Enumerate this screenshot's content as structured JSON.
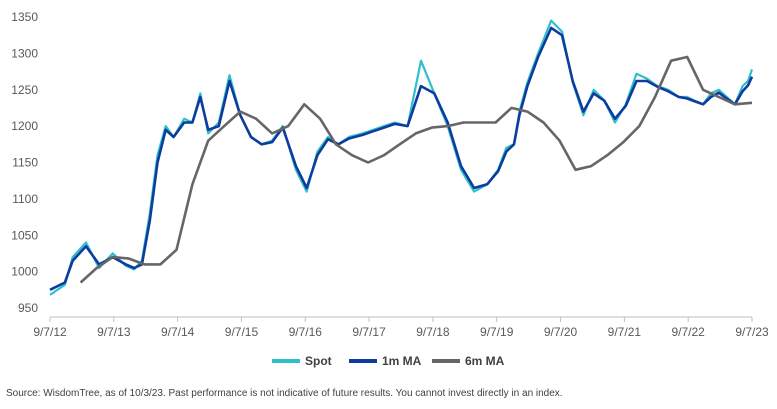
{
  "chart_data": {
    "type": "line",
    "ylim": [
      950,
      1350
    ],
    "yticks": [
      950,
      1000,
      1050,
      1100,
      1150,
      1200,
      1250,
      1300,
      1350
    ],
    "xlim": [
      "2012-09-07",
      "2023-09-07"
    ],
    "xtick_labels": [
      "9/7/12",
      "9/7/13",
      "9/7/14",
      "9/7/15",
      "9/7/16",
      "9/7/17",
      "9/7/18",
      "9/7/19",
      "9/7/20",
      "9/7/21",
      "9/7/22",
      "9/7/23"
    ],
    "grid": false,
    "legend": "bottom-center",
    "series": [
      {
        "name": "Spot",
        "color": "#2fbfca",
        "x": [
          "2012-09-07",
          "2012-12-01",
          "2013-01-15",
          "2013-04-01",
          "2013-06-15",
          "2013-09-01",
          "2013-11-15",
          "2014-01-01",
          "2014-02-15",
          "2014-04-01",
          "2014-05-15",
          "2014-07-01",
          "2014-08-15",
          "2014-10-15",
          "2014-12-01",
          "2015-01-15",
          "2015-03-01",
          "2015-05-01",
          "2015-07-01",
          "2015-09-01",
          "2015-11-01",
          "2016-01-01",
          "2016-03-01",
          "2016-05-01",
          "2016-07-15",
          "2016-09-15",
          "2016-11-15",
          "2017-01-15",
          "2017-03-15",
          "2017-05-15",
          "2017-08-01",
          "2017-10-01",
          "2017-12-01",
          "2018-02-01",
          "2018-04-15",
          "2018-07-01",
          "2018-09-15",
          "2018-12-01",
          "2019-02-15",
          "2019-05-01",
          "2019-07-15",
          "2019-09-15",
          "2019-11-01",
          "2019-12-15",
          "2020-01-15",
          "2020-03-01",
          "2020-05-01",
          "2020-07-15",
          "2020-09-15",
          "2020-11-15",
          "2021-01-15",
          "2021-03-15",
          "2021-05-15",
          "2021-07-15",
          "2021-09-15",
          "2021-11-15",
          "2022-01-15",
          "2022-03-15",
          "2022-05-15",
          "2022-07-15",
          "2022-09-01",
          "2022-10-15",
          "2022-12-01",
          "2023-01-15",
          "2023-03-01",
          "2023-04-15",
          "2023-06-01",
          "2023-07-15",
          "2023-08-15",
          "2023-09-07"
        ],
        "y": [
          968,
          982,
          1020,
          1040,
          1005,
          1025,
          1008,
          1003,
          1015,
          1080,
          1160,
          1200,
          1185,
          1210,
          1205,
          1245,
          1190,
          1205,
          1270,
          1215,
          1185,
          1175,
          1180,
          1200,
          1140,
          1110,
          1165,
          1185,
          1175,
          1185,
          1190,
          1195,
          1200,
          1205,
          1200,
          1290,
          1245,
          1200,
          1140,
          1110,
          1120,
          1140,
          1170,
          1175,
          1220,
          1260,
          1300,
          1345,
          1330,
          1260,
          1215,
          1250,
          1235,
          1205,
          1230,
          1272,
          1265,
          1255,
          1250,
          1240,
          1240,
          1235,
          1230,
          1245,
          1250,
          1240,
          1230,
          1255,
          1262,
          1278
        ]
      },
      {
        "name": "1m MA",
        "color": "#0d3c9e",
        "x": [
          "2012-09-07",
          "2012-12-01",
          "2013-01-15",
          "2013-04-01",
          "2013-06-15",
          "2013-09-01",
          "2013-11-15",
          "2014-01-01",
          "2014-02-15",
          "2014-04-01",
          "2014-05-15",
          "2014-07-01",
          "2014-08-15",
          "2014-10-15",
          "2014-12-01",
          "2015-01-15",
          "2015-03-01",
          "2015-05-01",
          "2015-07-01",
          "2015-09-01",
          "2015-11-01",
          "2016-01-01",
          "2016-03-01",
          "2016-05-01",
          "2016-07-15",
          "2016-09-15",
          "2016-11-15",
          "2017-01-15",
          "2017-03-15",
          "2017-05-15",
          "2017-08-01",
          "2017-10-01",
          "2017-12-01",
          "2018-02-01",
          "2018-04-15",
          "2018-07-01",
          "2018-09-15",
          "2018-12-01",
          "2019-02-15",
          "2019-05-01",
          "2019-07-15",
          "2019-09-15",
          "2019-11-01",
          "2019-12-15",
          "2020-01-15",
          "2020-03-01",
          "2020-05-01",
          "2020-07-15",
          "2020-09-15",
          "2020-11-15",
          "2021-01-15",
          "2021-03-15",
          "2021-05-15",
          "2021-07-15",
          "2021-09-15",
          "2021-11-15",
          "2022-01-15",
          "2022-03-15",
          "2022-05-15",
          "2022-07-15",
          "2022-09-01",
          "2022-10-15",
          "2022-12-01",
          "2023-01-15",
          "2023-03-01",
          "2023-04-15",
          "2023-06-01",
          "2023-07-15",
          "2023-08-15",
          "2023-09-07"
        ],
        "y": [
          975,
          985,
          1015,
          1035,
          1010,
          1020,
          1010,
          1005,
          1010,
          1070,
          1150,
          1195,
          1185,
          1205,
          1205,
          1240,
          1195,
          1200,
          1262,
          1215,
          1185,
          1175,
          1178,
          1198,
          1145,
          1115,
          1160,
          1182,
          1175,
          1183,
          1188,
          1193,
          1198,
          1203,
          1200,
          1255,
          1245,
          1205,
          1145,
          1115,
          1120,
          1138,
          1165,
          1175,
          1215,
          1255,
          1295,
          1335,
          1325,
          1262,
          1220,
          1245,
          1235,
          1210,
          1228,
          1262,
          1262,
          1254,
          1248,
          1240,
          1238,
          1234,
          1230,
          1240,
          1246,
          1238,
          1230,
          1248,
          1256,
          1268
        ]
      },
      {
        "name": "6m MA",
        "color": "#666666",
        "x": [
          "2013-03-01",
          "2013-06-01",
          "2013-09-01",
          "2013-12-01",
          "2014-03-01",
          "2014-06-01",
          "2014-09-01",
          "2014-12-01",
          "2015-03-01",
          "2015-06-01",
          "2015-09-01",
          "2015-12-01",
          "2016-03-01",
          "2016-06-01",
          "2016-09-01",
          "2016-12-01",
          "2017-03-01",
          "2017-06-01",
          "2017-09-01",
          "2017-12-01",
          "2018-03-01",
          "2018-06-01",
          "2018-09-01",
          "2018-12-01",
          "2019-03-01",
          "2019-06-01",
          "2019-09-01",
          "2019-12-01",
          "2020-03-01",
          "2020-06-01",
          "2020-09-01",
          "2020-12-01",
          "2021-03-01",
          "2021-06-01",
          "2021-09-01",
          "2021-12-01",
          "2022-03-01",
          "2022-06-01",
          "2022-09-01",
          "2022-12-01",
          "2023-03-01",
          "2023-06-01",
          "2023-09-07"
        ],
        "y": [
          985,
          1005,
          1020,
          1018,
          1010,
          1010,
          1030,
          1120,
          1180,
          1200,
          1220,
          1210,
          1190,
          1200,
          1230,
          1210,
          1175,
          1160,
          1150,
          1160,
          1175,
          1190,
          1198,
          1200,
          1205,
          1205,
          1205,
          1225,
          1220,
          1205,
          1180,
          1140,
          1145,
          1160,
          1178,
          1200,
          1240,
          1290,
          1295,
          1250,
          1240,
          1230,
          1232
        ]
      }
    ]
  },
  "source_note": "Source: WisdomTree, as of 10/3/23. Past performance is not indicative of future results. You cannot invest directly in an index."
}
